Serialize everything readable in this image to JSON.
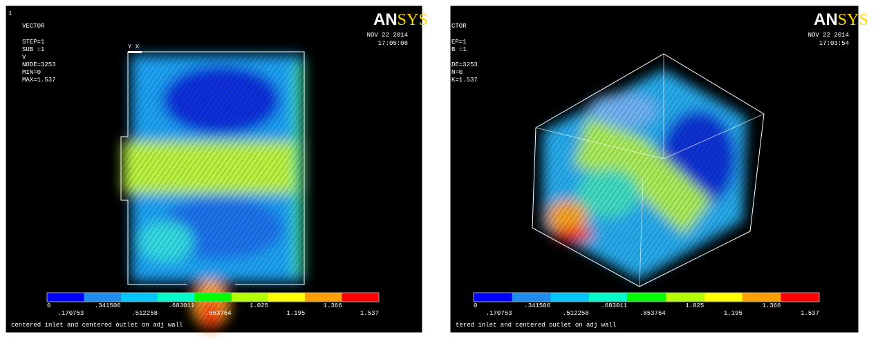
{
  "panels": [
    {
      "number": "1",
      "header": [
        "VECTOR",
        "STEP=1",
        "SUB =1",
        "V",
        "NODE=3253",
        "MIN=0",
        "MAX=1.537"
      ],
      "logo": {
        "a": "AN",
        "b": "SYS"
      },
      "date": "NOV 22 2014",
      "time": "17:05:08",
      "triad": "Y  X",
      "legend": [
        "0",
        ".170753",
        ".341506",
        ".512258",
        ".683011",
        ".853764",
        "1.025",
        "1.195",
        "1.366",
        "1.537"
      ],
      "caption": "centered inlet and centered outlet on adj wall"
    },
    {
      "header": [
        "CTOR",
        "EP=1",
        "B =1",
        "",
        "DE=3253",
        "N=0",
        "K=1.537"
      ],
      "logo": {
        "a": "AN",
        "b": "SYS"
      },
      "date": "NOV 22 2014",
      "time": "17:03:54",
      "legend": [
        "0",
        ".170753",
        ".341506",
        ".512258",
        ".683011",
        ".853764",
        "1.025",
        "1.195",
        "1.366",
        "1.537"
      ],
      "caption": "tered inlet and centered outlet on adj wall"
    }
  ]
}
